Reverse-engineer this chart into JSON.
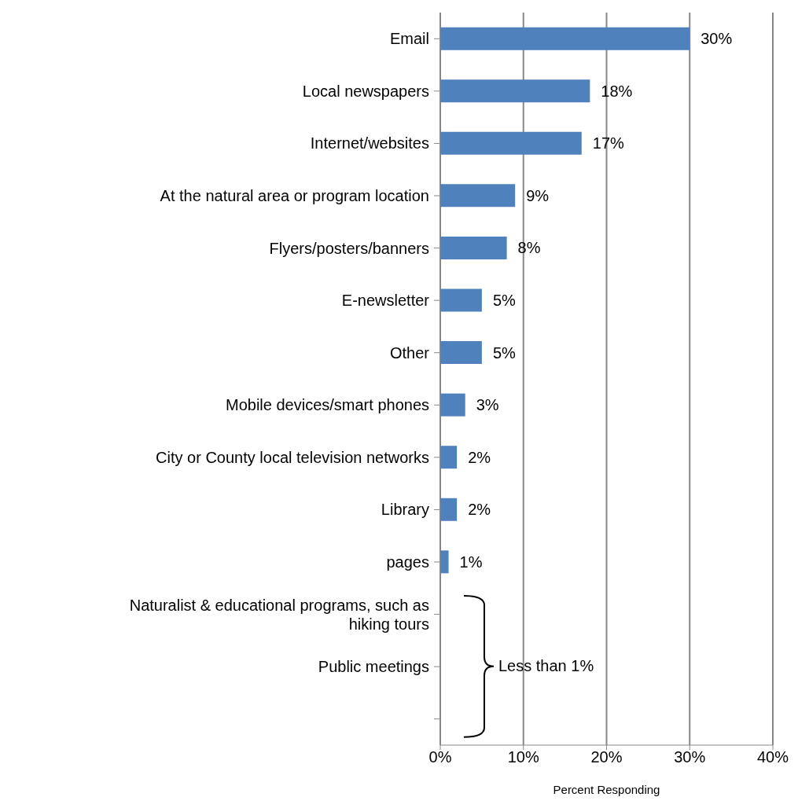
{
  "chart_data": {
    "type": "bar",
    "orientation": "horizontal",
    "categories": [
      "Email",
      "Local newspapers",
      "Internet/websites",
      "At the natural area or program location",
      "Flyers/posters/banners",
      "E-newsletter",
      "Other",
      "Mobile devices/smart phones",
      "City or County local television networks",
      "Library",
      "pages",
      "Naturalist & educational programs, such as hiking tours",
      "Public meetings",
      null
    ],
    "values": [
      30,
      18,
      17,
      9,
      8,
      5,
      5,
      3,
      2,
      2,
      1,
      null,
      null,
      null
    ],
    "value_labels": [
      "30%",
      "18%",
      "17%",
      "9%",
      "8%",
      "5%",
      "5%",
      "3%",
      "2%",
      "2%",
      "1%",
      null,
      null,
      null
    ],
    "color": "#4f81bd",
    "xlabel": "Percent Responding",
    "xlim": [
      0,
      40
    ],
    "xticks": [
      {
        "value": 0,
        "label": "0%"
      },
      {
        "value": 10,
        "label": "10%"
      },
      {
        "value": 20,
        "label": "20%"
      },
      {
        "value": 30,
        "label": "30%"
      },
      {
        "value": 40,
        "label": "40%"
      }
    ],
    "grid": "x",
    "legend": false,
    "annotations": [
      "Less than 1%"
    ]
  }
}
